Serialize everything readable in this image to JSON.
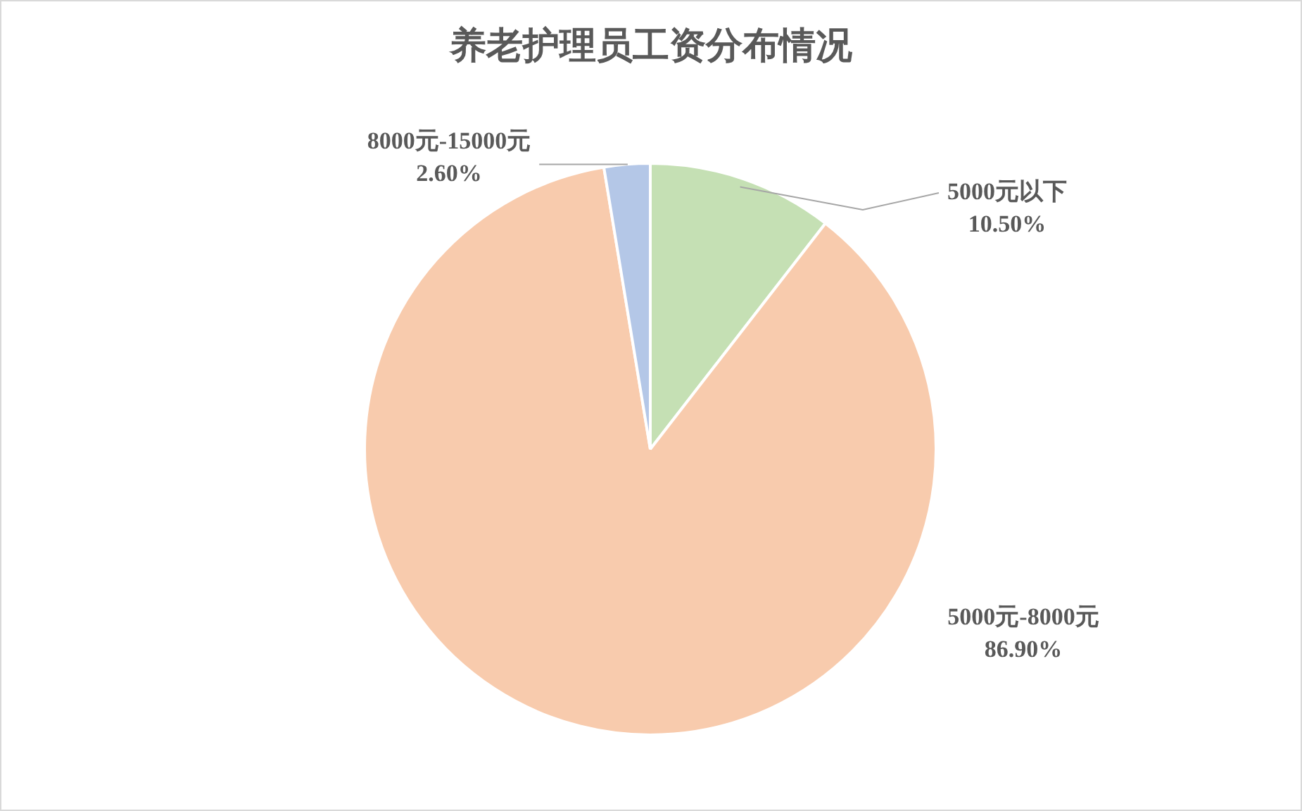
{
  "chart_data": {
    "type": "pie",
    "title": "养老护理员工资分布情况",
    "categories": [
      "5000元以下",
      "5000元-8000元",
      "8000元-15000元"
    ],
    "values": [
      10.5,
      86.9,
      2.6
    ],
    "colors": [
      "#c5e0b4",
      "#f8cbad",
      "#b4c7e7"
    ],
    "value_labels": [
      "10.50%",
      "86.90%",
      "2.60%"
    ],
    "legend": false
  }
}
